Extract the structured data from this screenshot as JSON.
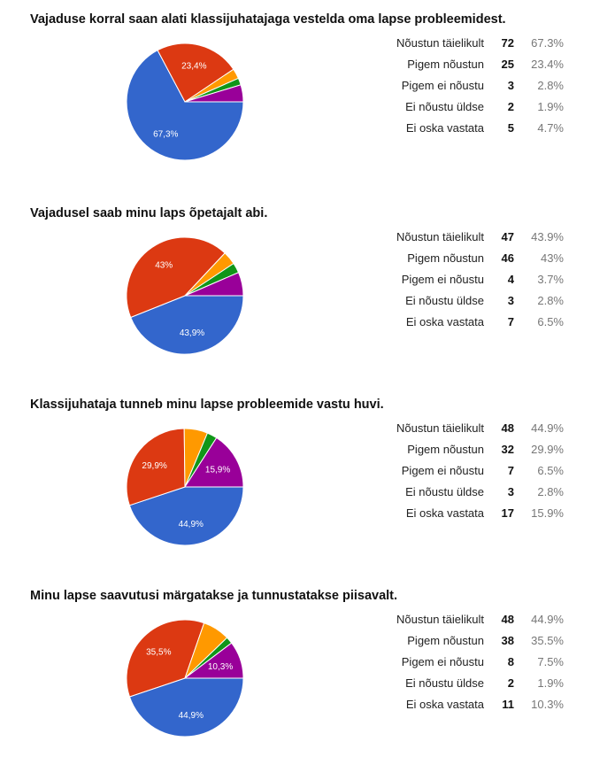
{
  "colors": {
    "Nõustun täielikult": "#3366cc",
    "Pigem nõustun": "#dc3912",
    "Pigem ei nõustu": "#ff9900",
    "Ei nõustu üldse": "#109618",
    "Ei oska vastata": "#990099"
  },
  "chart_data": [
    {
      "type": "pie",
      "title": "Vajaduse korral saan alati klassijuhatajaga vestelda oma lapse probleemidest.",
      "slices": [
        {
          "label": "Nõustun täielikult",
          "count": 72,
          "percent": "67.3%",
          "value": 67.3,
          "slice_label": "67,3%"
        },
        {
          "label": "Pigem nõustun",
          "count": 25,
          "percent": "23.4%",
          "value": 23.4,
          "slice_label": "23,4%"
        },
        {
          "label": "Pigem ei nõustu",
          "count": 3,
          "percent": "2.8%",
          "value": 2.8,
          "slice_label": ""
        },
        {
          "label": "Ei nõustu üldse",
          "count": 2,
          "percent": "1.9%",
          "value": 1.9,
          "slice_label": ""
        },
        {
          "label": "Ei oska vastata",
          "count": 5,
          "percent": "4.7%",
          "value": 4.7,
          "slice_label": ""
        }
      ]
    },
    {
      "type": "pie",
      "title": "Vajadusel saab minu laps õpetajalt abi.",
      "slices": [
        {
          "label": "Nõustun täielikult",
          "count": 47,
          "percent": "43.9%",
          "value": 43.9,
          "slice_label": "43,9%"
        },
        {
          "label": "Pigem nõustun",
          "count": 46,
          "percent": "43%",
          "value": 43,
          "slice_label": "43%"
        },
        {
          "label": "Pigem ei nõustu",
          "count": 4,
          "percent": "3.7%",
          "value": 3.7,
          "slice_label": ""
        },
        {
          "label": "Ei nõustu üldse",
          "count": 3,
          "percent": "2.8%",
          "value": 2.8,
          "slice_label": ""
        },
        {
          "label": "Ei oska vastata",
          "count": 7,
          "percent": "6.5%",
          "value": 6.5,
          "slice_label": ""
        }
      ]
    },
    {
      "type": "pie",
      "title": "Klassijuhataja tunneb minu lapse probleemide vastu huvi.",
      "slices": [
        {
          "label": "Nõustun täielikult",
          "count": 48,
          "percent": "44.9%",
          "value": 44.9,
          "slice_label": "44,9%"
        },
        {
          "label": "Pigem nõustun",
          "count": 32,
          "percent": "29.9%",
          "value": 29.9,
          "slice_label": "29,9%"
        },
        {
          "label": "Pigem ei nõustu",
          "count": 7,
          "percent": "6.5%",
          "value": 6.5,
          "slice_label": ""
        },
        {
          "label": "Ei nõustu üldse",
          "count": 3,
          "percent": "2.8%",
          "value": 2.8,
          "slice_label": ""
        },
        {
          "label": "Ei oska vastata",
          "count": 17,
          "percent": "15.9%",
          "value": 15.9,
          "slice_label": "15,9%"
        }
      ]
    },
    {
      "type": "pie",
      "title": "Minu lapse saavutusi märgatakse ja tunnustatakse piisavalt.",
      "slices": [
        {
          "label": "Nõustun täielikult",
          "count": 48,
          "percent": "44.9%",
          "value": 44.9,
          "slice_label": "44,9%"
        },
        {
          "label": "Pigem nõustun",
          "count": 38,
          "percent": "35.5%",
          "value": 35.5,
          "slice_label": "35,5%"
        },
        {
          "label": "Pigem ei nõustu",
          "count": 8,
          "percent": "7.5%",
          "value": 7.5,
          "slice_label": ""
        },
        {
          "label": "Ei nõustu üldse",
          "count": 2,
          "percent": "1.9%",
          "value": 1.9,
          "slice_label": ""
        },
        {
          "label": "Ei oska vastata",
          "count": 11,
          "percent": "10.3%",
          "value": 10.3,
          "slice_label": "10,3%"
        }
      ]
    }
  ]
}
